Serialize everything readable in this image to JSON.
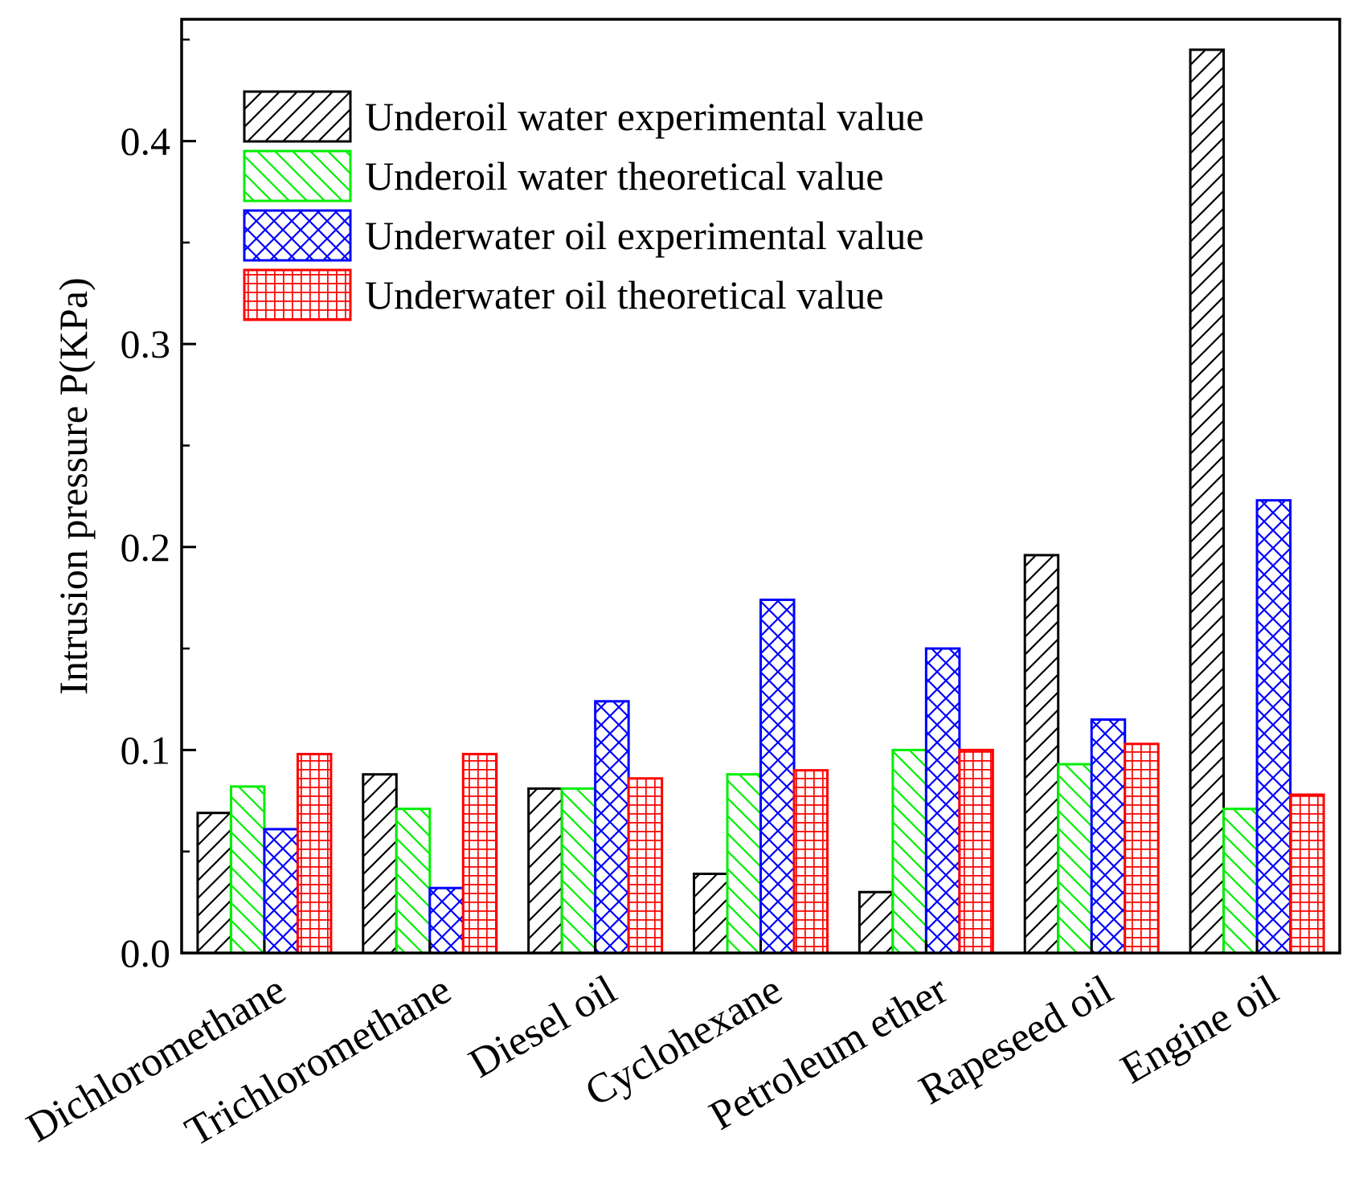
{
  "chart_data": {
    "type": "bar",
    "title": "",
    "xlabel": "",
    "ylabel": "Intrusion pressure P(KPa)",
    "ylim": [
      0,
      0.46
    ],
    "yticks": [
      0.0,
      0.1,
      0.2,
      0.3,
      0.4
    ],
    "ytick_labels": [
      "0.0",
      "0.1",
      "0.2",
      "0.3",
      "0.4"
    ],
    "grid": false,
    "legend_position": "top-left",
    "categories": [
      "Dichloromethane",
      "Trichloromethane",
      "Diesel oil",
      "Cyclohexane",
      "Petroleum ether",
      "Rapeseed oil",
      "Engine oil"
    ],
    "series": [
      {
        "name": "Underoil water experimental value",
        "color": "#000000",
        "pattern": "diagonal-forward",
        "values": [
          0.069,
          0.088,
          0.081,
          0.039,
          0.03,
          0.196,
          0.445
        ]
      },
      {
        "name": "Underoil water theoretical value",
        "color": "#00ee00",
        "pattern": "diagonal-backward",
        "values": [
          0.082,
          0.071,
          0.081,
          0.088,
          0.1,
          0.093,
          0.071
        ]
      },
      {
        "name": "Underwater oil experimental value",
        "color": "#0000ff",
        "pattern": "crosshatch",
        "values": [
          0.061,
          0.032,
          0.124,
          0.174,
          0.15,
          0.115,
          0.223
        ]
      },
      {
        "name": "Underwater oil theoretical value",
        "color": "#ff0000",
        "pattern": "grid",
        "values": [
          0.098,
          0.098,
          0.086,
          0.09,
          0.1,
          0.103,
          0.078
        ]
      }
    ]
  }
}
